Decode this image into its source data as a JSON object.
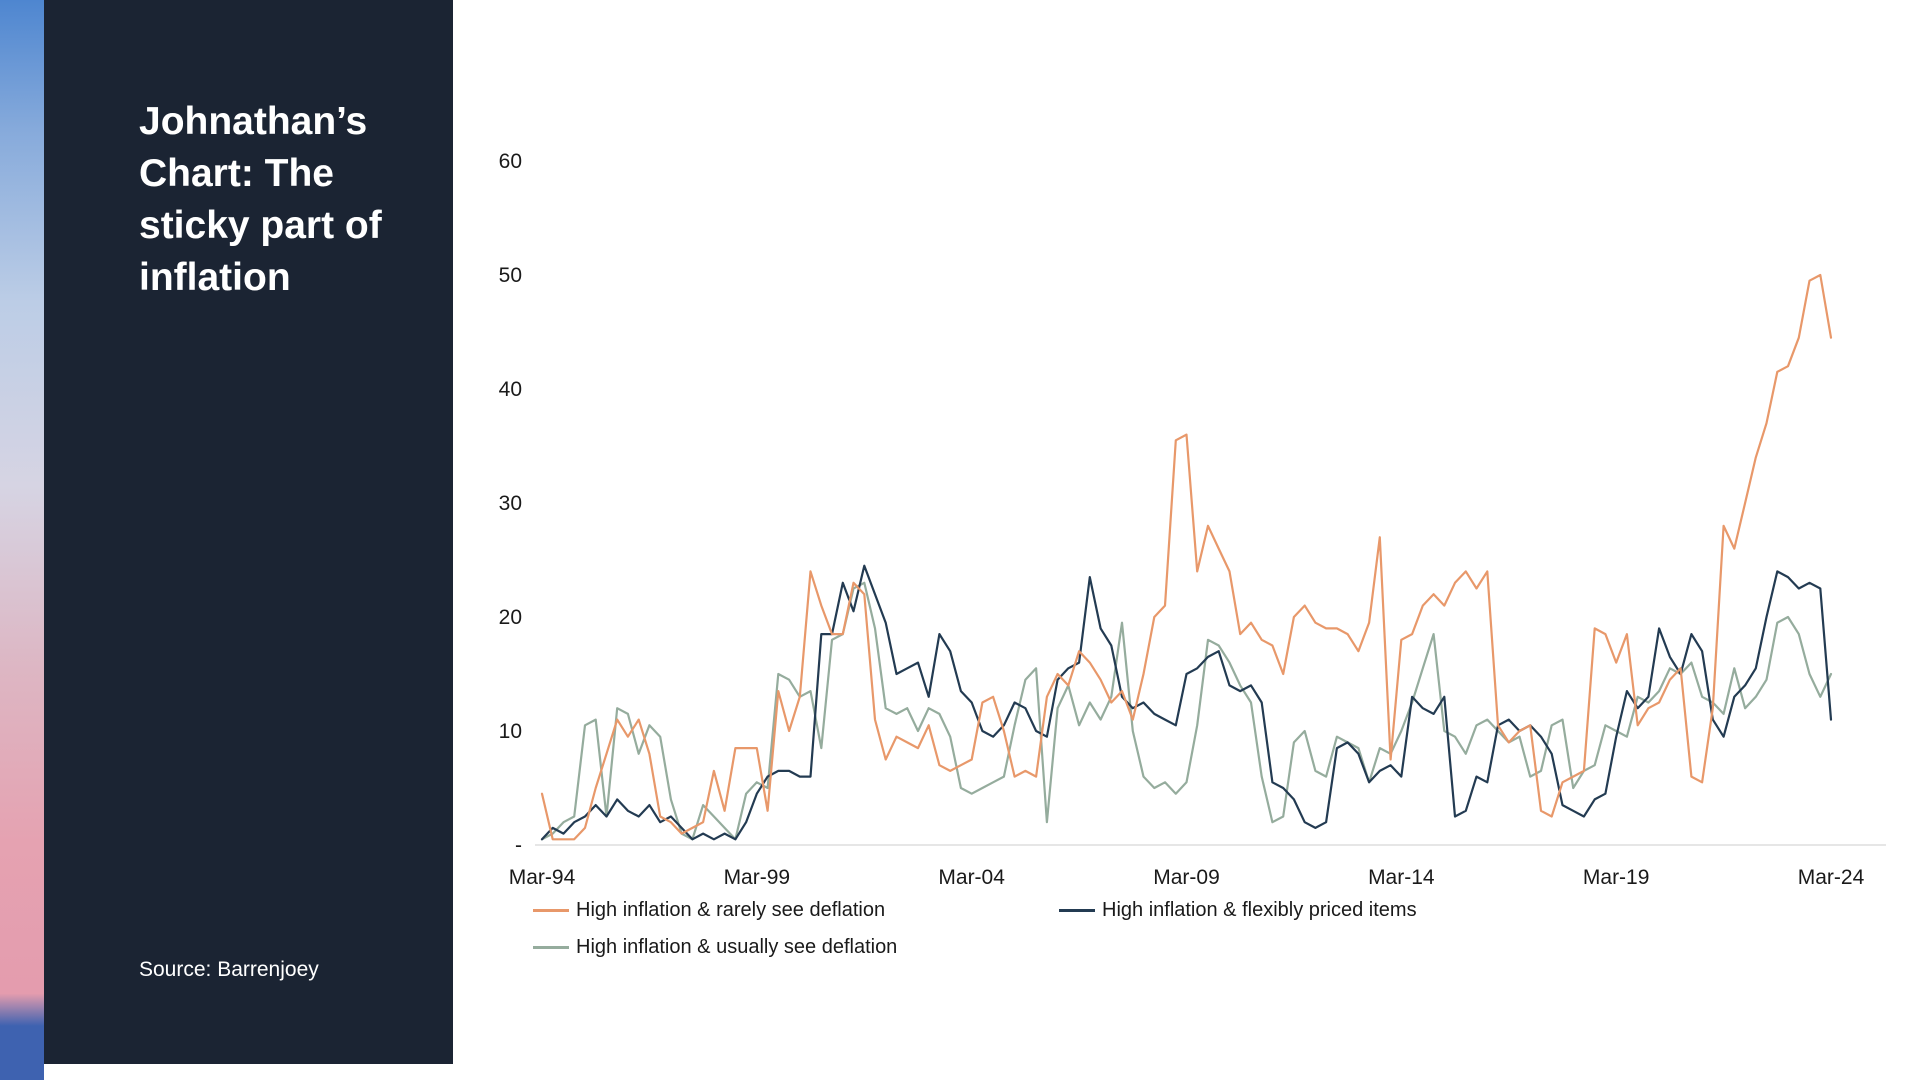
{
  "sidebar": {
    "title": "Johnathan’s Chart: The sticky part of inflation",
    "source": "Source: Barrenjoey",
    "background_color": "#1B2433",
    "gradient_colors": [
      "#4E86D0",
      "#BCCDE6",
      "#E5A2B1",
      "#3E62B0"
    ]
  },
  "chart_data": {
    "type": "line",
    "title": "",
    "xlabel": "",
    "ylabel": "",
    "x_unit": "quarterly",
    "x_range": [
      "Mar-94",
      "Mar-24"
    ],
    "x_tick_labels": [
      "Mar-94",
      "Mar-99",
      "Mar-04",
      "Mar-09",
      "Mar-14",
      "Mar-19",
      "Mar-24"
    ],
    "y_tick_values": [
      0,
      10,
      20,
      30,
      40,
      50,
      60
    ],
    "y_tick_labels": [
      "-",
      "10",
      "20",
      "30",
      "40",
      "50",
      "60"
    ],
    "ylim": [
      0,
      65
    ],
    "grid": false,
    "legend_position": "bottom",
    "series": [
      {
        "name": "High inflation & rarely see deflation",
        "color": "#E8986A",
        "values": [
          4.5,
          0.5,
          0.5,
          0.5,
          1.5,
          5,
          8,
          11,
          9.5,
          11,
          8,
          2.5,
          2,
          1,
          1.5,
          2,
          6.5,
          3,
          8.5,
          8.5,
          8.5,
          3,
          13.5,
          10,
          13,
          24,
          21,
          18.5,
          18.5,
          23,
          22,
          11,
          7.5,
          9.5,
          9,
          8.5,
          10.5,
          7,
          6.5,
          7,
          7.5,
          12.5,
          13,
          10,
          6,
          6.5,
          6,
          13,
          15,
          14,
          17,
          16,
          14.5,
          12.5,
          13.5,
          11,
          15,
          20,
          21,
          35.5,
          36,
          24,
          28,
          26,
          24,
          18.5,
          19.5,
          18,
          17.5,
          15,
          20,
          21,
          19.5,
          19,
          19,
          18.5,
          17,
          19.5,
          27,
          7.5,
          18,
          18.5,
          21,
          22,
          21,
          23,
          24,
          22.5,
          24,
          10.5,
          9,
          10,
          10.5,
          3,
          2.5,
          5.5,
          6,
          6.5,
          19,
          18.5,
          16,
          18.5,
          10.5,
          12,
          12.5,
          14.5,
          15.5,
          6,
          5.5,
          12,
          28,
          26,
          30,
          34,
          37,
          41.5,
          42,
          44.5,
          49.5,
          50,
          44.5
        ]
      },
      {
        "name": "High inflation & flexibly priced items",
        "color": "#233B52",
        "values": [
          0.5,
          1.5,
          1,
          2,
          2.5,
          3.5,
          2.5,
          4,
          3,
          2.5,
          3.5,
          2,
          2.5,
          1.5,
          0.5,
          1,
          0.5,
          1,
          0.5,
          2,
          4.5,
          6,
          6.5,
          6.5,
          6,
          6,
          18.5,
          18.5,
          23,
          20.5,
          24.5,
          22,
          19.5,
          15,
          15.5,
          16,
          13,
          18.5,
          17,
          13.5,
          12.5,
          10,
          9.5,
          10.5,
          12.5,
          12,
          10,
          9.5,
          14.5,
          15.5,
          16,
          23.5,
          19,
          17.5,
          13,
          12,
          12.5,
          11.5,
          11,
          10.5,
          15,
          15.5,
          16.5,
          17,
          14,
          13.5,
          14,
          12.5,
          5.5,
          5,
          4,
          2,
          1.5,
          2,
          8.5,
          9,
          8,
          5.5,
          6.5,
          7,
          6,
          13,
          12,
          11.5,
          13,
          2.5,
          3,
          6,
          5.5,
          10.5,
          11,
          10,
          10.5,
          9.5,
          8,
          3.5,
          3,
          2.5,
          4,
          4.5,
          9.5,
          13.5,
          12,
          13,
          19,
          16.5,
          15,
          18.5,
          17,
          11,
          9.5,
          13,
          14,
          15.5,
          20,
          24,
          23.5,
          22.5,
          23,
          22.5,
          11
        ]
      },
      {
        "name": "High inflation & usually see deflation",
        "color": "#95AC9D",
        "values": [
          0.5,
          1,
          2,
          2.5,
          10.5,
          11,
          2.5,
          12,
          11.5,
          8,
          10.5,
          9.5,
          4,
          1,
          0.5,
          3.5,
          2.5,
          1.5,
          0.5,
          4.5,
          5.5,
          5,
          15,
          14.5,
          13,
          13.5,
          8.5,
          18,
          18.5,
          22.5,
          23,
          19,
          12,
          11.5,
          12,
          10,
          12,
          11.5,
          9.5,
          5,
          4.5,
          5,
          5.5,
          6,
          10.5,
          14.5,
          15.5,
          2,
          12,
          14,
          10.5,
          12.5,
          11,
          13,
          19.5,
          10,
          6,
          5,
          5.5,
          4.5,
          5.5,
          10.5,
          18,
          17.5,
          16,
          14,
          12.5,
          6,
          2,
          2.5,
          9,
          10,
          6.5,
          6,
          9.5,
          9,
          8.5,
          5.5,
          8.5,
          8,
          10,
          12.5,
          15.5,
          18.5,
          10,
          9.5,
          8,
          10.5,
          11,
          10,
          9,
          9.5,
          6,
          6.5,
          10.5,
          11,
          5,
          6.5,
          7,
          10.5,
          10,
          9.5,
          13,
          12.5,
          13.5,
          15.5,
          15,
          16,
          13,
          12.5,
          11.5,
          15.5,
          12,
          13,
          14.5,
          19.5,
          20,
          18.5,
          15,
          13,
          15
        ]
      }
    ]
  }
}
